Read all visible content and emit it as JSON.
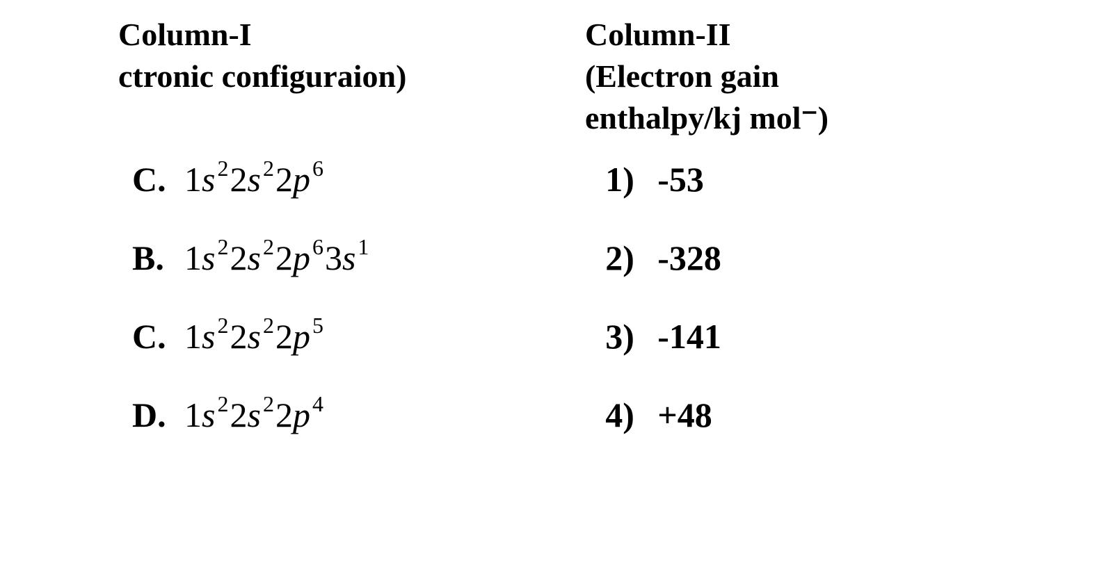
{
  "header": {
    "col1_line1": "Column-I",
    "col1_line2": "ctronic configuraion)",
    "col2_line1": "Column-II",
    "col2_line2": "(Electron gain",
    "col2_line3": "enthalpy/kj mol⁻)"
  },
  "rows": [
    {
      "label": "C.",
      "orbitals": [
        {
          "n": "1",
          "l": "s",
          "e": "2"
        },
        {
          "n": "2",
          "l": "s",
          "e": "2"
        },
        {
          "n": "2",
          "l": "p",
          "e": "6"
        }
      ],
      "value_label": "1)",
      "value": "-53"
    },
    {
      "label": "B.",
      "orbitals": [
        {
          "n": "1",
          "l": "s",
          "e": "2"
        },
        {
          "n": "2",
          "l": "s",
          "e": "2"
        },
        {
          "n": "2",
          "l": "p",
          "e": "6"
        },
        {
          "n": "3",
          "l": "s",
          "e": "1"
        }
      ],
      "value_label": "2)",
      "value": "-328"
    },
    {
      "label": "C.",
      "orbitals": [
        {
          "n": "1",
          "l": "s",
          "e": "2"
        },
        {
          "n": "2",
          "l": "s",
          "e": "2"
        },
        {
          "n": "2",
          "l": "p",
          "e": "5"
        }
      ],
      "value_label": "3)",
      "value": "-141"
    },
    {
      "label": "D.",
      "orbitals": [
        {
          "n": "1",
          "l": "s",
          "e": "2"
        },
        {
          "n": "2",
          "l": "s",
          "e": "2"
        },
        {
          "n": "2",
          "l": "p",
          "e": "4"
        }
      ],
      "value_label": "4)",
      "value": "+48"
    }
  ],
  "style": {
    "background_color": "#ffffff",
    "text_color": "#000000",
    "header_fontsize": 46,
    "row_fontsize": 50,
    "superscript_fontsize": 32,
    "font_family": "Times New Roman"
  }
}
